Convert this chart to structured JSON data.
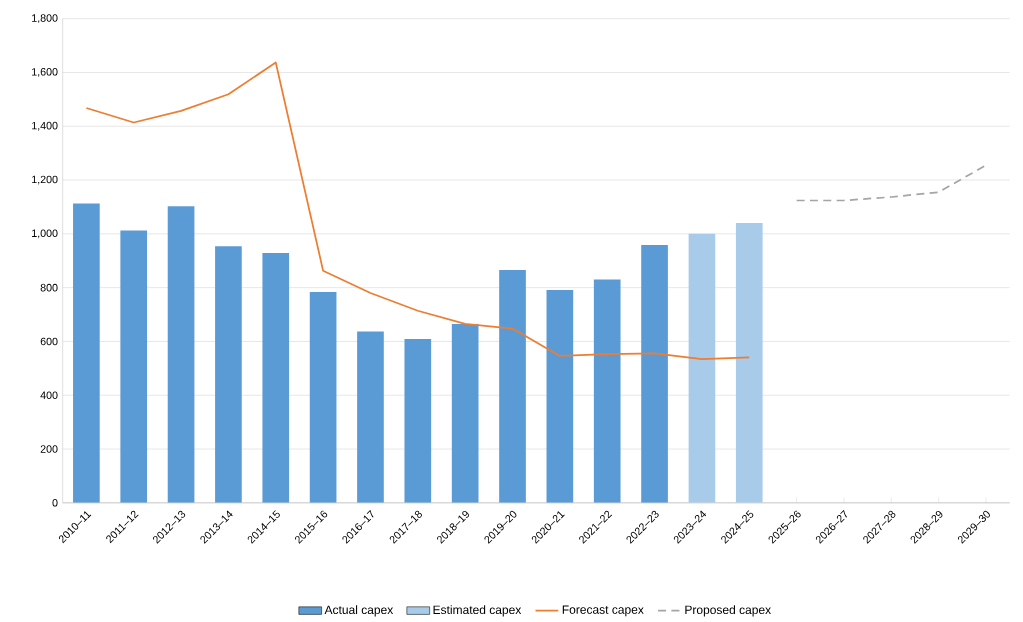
{
  "chart_data": {
    "type": "bar",
    "categories": [
      "2010–11",
      "2011–12",
      "2012–13",
      "2013–14",
      "2014–15",
      "2015–16",
      "2016–17",
      "2017–18",
      "2018–19",
      "2019–20",
      "2020–21",
      "2021–22",
      "2022–23",
      "2023–24",
      "2024–25",
      "2025–26",
      "2026–27",
      "2027–28",
      "2028–29",
      "2029–30"
    ],
    "series": [
      {
        "name": "Actual capex",
        "type": "bar",
        "color": "#5b9bd5",
        "values": [
          1113,
          1012,
          1103,
          954,
          929,
          784,
          637,
          609,
          665,
          866,
          791,
          830,
          959,
          null,
          null,
          null,
          null,
          null,
          null,
          null
        ]
      },
      {
        "name": "Estimated capex",
        "type": "bar",
        "color": "#a9cbea",
        "values": [
          null,
          null,
          null,
          null,
          null,
          null,
          null,
          null,
          null,
          null,
          null,
          null,
          null,
          1000,
          1040,
          null,
          null,
          null,
          null,
          null
        ]
      },
      {
        "name": "Forecast capex",
        "type": "line",
        "color": "#ed7d31",
        "values": [
          1468,
          1414,
          1457,
          1519,
          1637,
          863,
          780,
          714,
          665,
          648,
          546,
          553,
          556,
          534,
          541,
          null,
          null,
          null,
          null,
          null
        ]
      },
      {
        "name": "Proposed capex",
        "type": "line",
        "color": "#a5a5a5",
        "line_style": "dashed",
        "values": [
          null,
          null,
          null,
          null,
          null,
          null,
          null,
          null,
          null,
          null,
          null,
          null,
          null,
          null,
          null,
          1124,
          1124,
          1137,
          1155,
          1255
        ]
      }
    ],
    "ylim": [
      0,
      1800
    ],
    "yticks": [
      0,
      200,
      400,
      600,
      800,
      {
        "value": 1000,
        "label": "1,000"
      },
      {
        "value": 1200,
        "label": "1,200"
      },
      {
        "value": 1400,
        "label": "1,400"
      },
      {
        "value": 1600,
        "label": "1,600"
      },
      {
        "value": 1800,
        "label": "1,800"
      }
    ],
    "grid": "y",
    "legend": "bottom"
  }
}
